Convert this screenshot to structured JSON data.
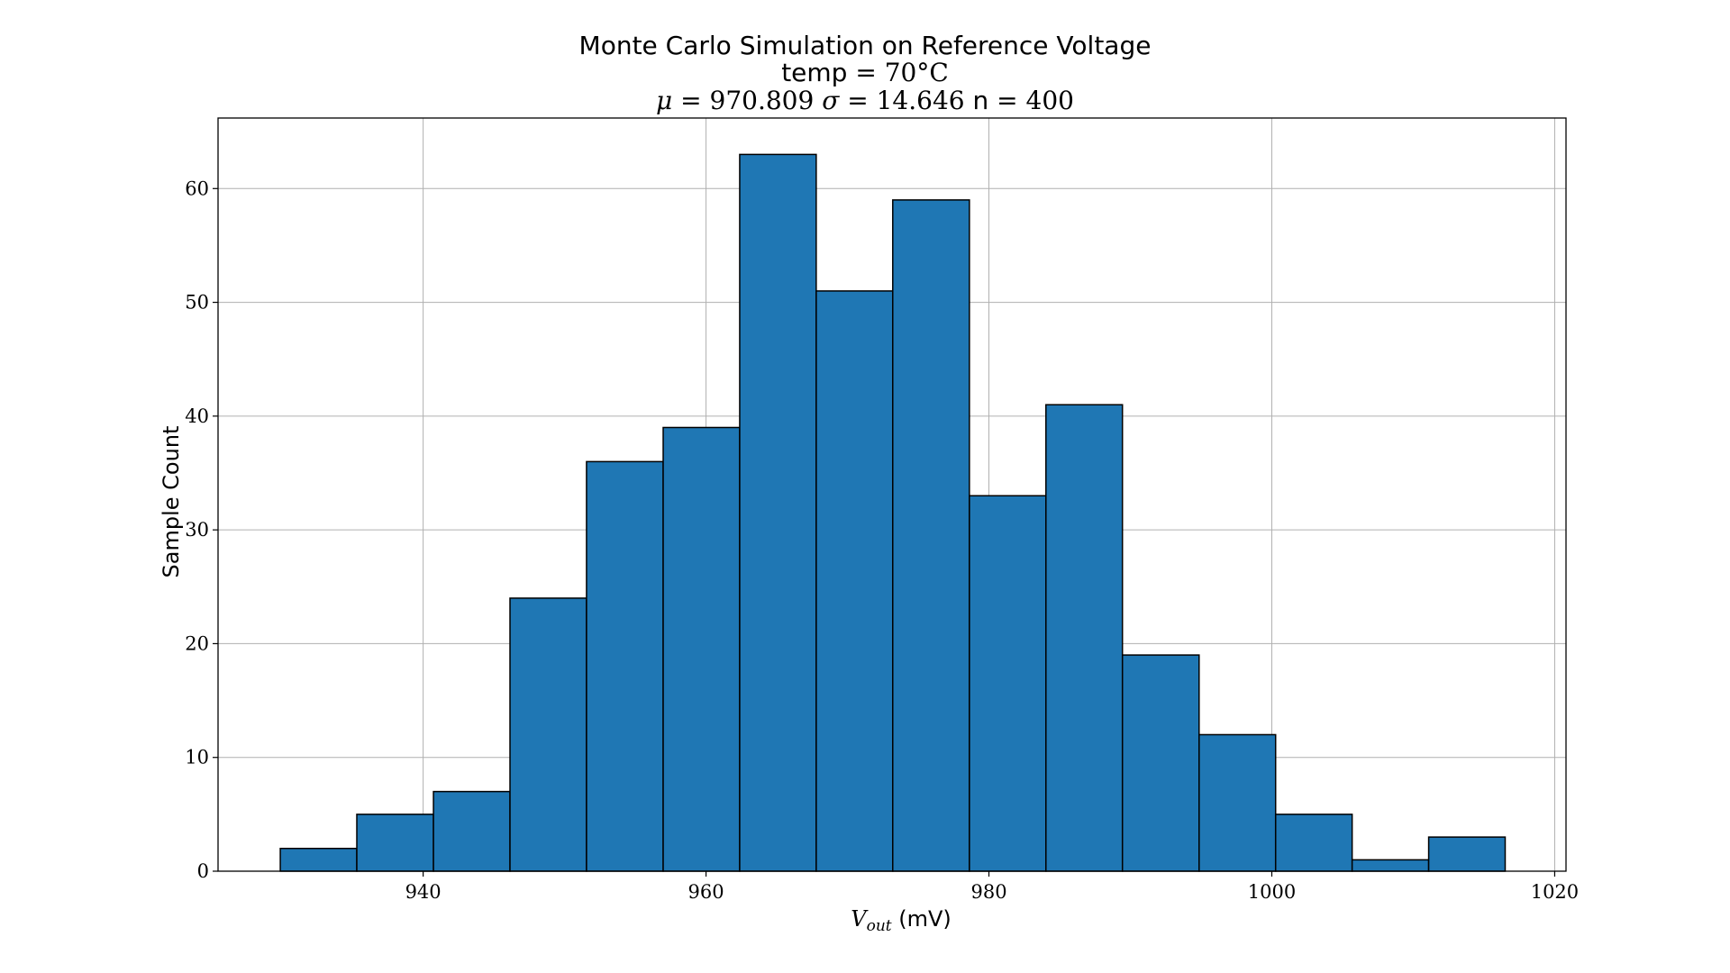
{
  "chart_data": {
    "type": "bar",
    "title": "Monte Carlo Simulation on Reference Voltage",
    "subtitle_temp": {
      "label": "temp",
      "value": "70°C"
    },
    "stats": {
      "mu_symbol": "μ",
      "mu": "970.809",
      "sigma_symbol": "σ",
      "sigma": "14.646",
      "n_label": "n",
      "n": "400"
    },
    "xlabel": {
      "symbol": "V",
      "subscript": "out",
      "unit": "(mV)"
    },
    "ylabel": "Sample Count",
    "xlim": [
      925.5,
      1020.8
    ],
    "ylim": [
      0,
      66.2
    ],
    "xticks": [
      940,
      960,
      980,
      1000,
      1020
    ],
    "yticks": [
      0,
      10,
      20,
      30,
      40,
      50,
      60
    ],
    "bin_edges": [
      929.9,
      935.31,
      940.73,
      946.14,
      951.55,
      956.97,
      962.38,
      967.79,
      973.2,
      978.62,
      984.03,
      989.44,
      994.86,
      1000.27,
      1005.68,
      1011.09,
      1016.5
    ],
    "values": [
      2,
      5,
      7,
      24,
      36,
      39,
      63,
      51,
      59,
      33,
      41,
      19,
      12,
      5,
      1,
      3
    ],
    "bar_color": "#1f77b4",
    "edge_color": "#000000",
    "grid": true
  }
}
